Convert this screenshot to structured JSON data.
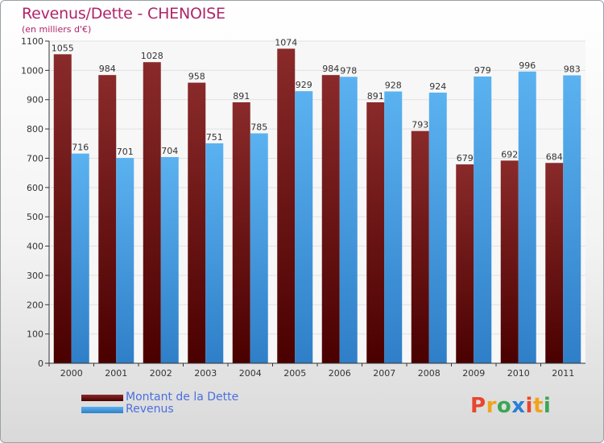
{
  "chart_data": {
    "type": "bar",
    "title": "Revenus/Dette - CHENOISE",
    "subtitle": "(en milliers d'€)",
    "categories": [
      "2000",
      "2001",
      "2002",
      "2003",
      "2004",
      "2005",
      "2006",
      "2007",
      "2008",
      "2009",
      "2010",
      "2011"
    ],
    "series": [
      {
        "name": "Montant de la Dette",
        "color": "#7a1a1a",
        "values": [
          1055,
          984,
          1028,
          958,
          891,
          1074,
          984,
          891,
          793,
          679,
          692,
          684
        ]
      },
      {
        "name": "Revenus",
        "color": "#4aa3e8",
        "values": [
          716,
          701,
          704,
          751,
          785,
          929,
          978,
          928,
          924,
          979,
          996,
          983
        ]
      }
    ],
    "ylim": [
      0,
      1100
    ],
    "yticks": [
      0,
      100,
      200,
      300,
      400,
      500,
      600,
      700,
      800,
      900,
      1000,
      1100
    ],
    "grid": true,
    "legend": "bottom-left"
  },
  "logo": {
    "letters": [
      "P",
      "r",
      "o",
      "x",
      "i",
      "t",
      "i"
    ],
    "colors": [
      "#e8462e",
      "#f2a31b",
      "#3aa655",
      "#2b7fd6",
      "#e8462e",
      "#f2a31b",
      "#3aa655"
    ]
  }
}
